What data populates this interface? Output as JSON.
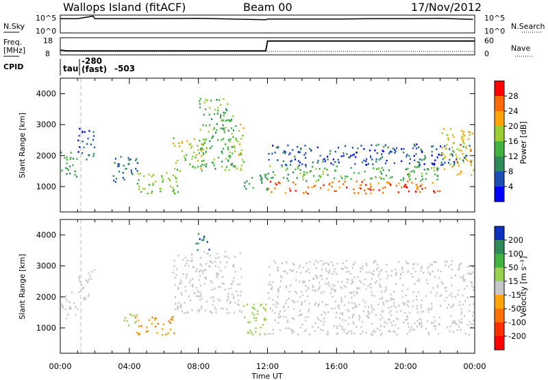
{
  "header": {
    "station": "Wallops Island (fitACF)",
    "beam": "Beam 00",
    "date": "17/Nov/2012"
  },
  "top_panels": {
    "nsky_label": "N.Sky",
    "nsky_ticks": [
      "10^5",
      "10^0"
    ],
    "nsearch_label": "N.Search",
    "nsearch_ticks": [
      "10^5",
      "10^0"
    ],
    "freq_label": "Freq.",
    "freq_unit": "[MHz]",
    "freq_ticks": [
      "18",
      "8"
    ],
    "nave_label": "Nave",
    "nave_ticks": [
      "60",
      "0"
    ],
    "cpid_label": "CPID",
    "cpid_entries": [
      "tau",
      "-280",
      "(fast)",
      "-503"
    ]
  },
  "axes": {
    "xlabel": "Time UT",
    "ylabel": "Slant Range [km]",
    "x_ticks": [
      "00:00",
      "04:00",
      "08:00",
      "12:00",
      "16:00",
      "20:00",
      "00:00"
    ],
    "y_ticks": [
      "1000",
      "2000",
      "3000",
      "4000"
    ]
  },
  "colorbars": {
    "power": {
      "label": "Power [dB]",
      "ticks": [
        "4",
        "8",
        "12",
        "16",
        "20",
        "24",
        "28"
      ],
      "colors": [
        "#0000ff",
        "#1e4fb4",
        "#2e8b57",
        "#41b241",
        "#9acd32",
        "#ffa500",
        "#ff6a00",
        "#ff0000"
      ]
    },
    "velocity": {
      "label": "Velocity [m s⁻¹]",
      "ticks": [
        "200",
        "100",
        "50",
        "15",
        "-15",
        "-50",
        "-100",
        "-200"
      ],
      "colors": [
        "#1030c0",
        "#2e8b57",
        "#41b241",
        "#9ad050",
        "#c8c8c8",
        "#ffa500",
        "#ff7000",
        "#ff3000",
        "#ff0000"
      ]
    }
  },
  "chart_data": [
    {
      "type": "line",
      "title": "N.Sky",
      "x": [
        0,
        1,
        1.9,
        2,
        4,
        8,
        11.9,
        12,
        14,
        16,
        18,
        20,
        22,
        23.9
      ],
      "y_log10": [
        4.1,
        4.1,
        4.9,
        4.1,
        4.1,
        4.2,
        3.8,
        4.0,
        4.0,
        4.0,
        4.1,
        4.1,
        4.2,
        3.9
      ]
    },
    {
      "type": "line",
      "title": "Freq. [MHz]",
      "x": [
        0,
        0.4,
        11.9,
        12,
        24
      ],
      "y": [
        10.5,
        10,
        10,
        16,
        16
      ]
    },
    {
      "type": "heatmap",
      "title": "Power [dB]",
      "xlim": [
        0,
        24
      ],
      "ylim": [
        180,
        4500
      ],
      "ylabel": "Slant Range [km]",
      "xlabel": "Time UT",
      "bands": [
        {
          "t0": 0.0,
          "t1": 1.0,
          "r0": 1300,
          "r1": 2200,
          "p": 12
        },
        {
          "t0": 1.0,
          "t1": 2.0,
          "r0": 1900,
          "r1": 2900,
          "p": 6
        },
        {
          "t0": 3.0,
          "t1": 4.5,
          "r0": 1100,
          "r1": 2000,
          "p": 8
        },
        {
          "t0": 4.2,
          "t1": 6.8,
          "r0": 800,
          "r1": 1500,
          "p": 16
        },
        {
          "t0": 6.5,
          "t1": 8.5,
          "r0": 1500,
          "r1": 2600,
          "p": 18
        },
        {
          "t0": 8.0,
          "t1": 10.0,
          "r0": 1600,
          "r1": 3900,
          "p": 14
        },
        {
          "t0": 9.5,
          "t1": 10.6,
          "r0": 1500,
          "r1": 3100,
          "p": 18
        },
        {
          "t0": 10.6,
          "t1": 12.0,
          "r0": 900,
          "r1": 1500,
          "p": 12
        },
        {
          "t0": 12.0,
          "t1": 22.0,
          "r0": 800,
          "r1": 1200,
          "p": 26
        },
        {
          "t0": 12.0,
          "t1": 22.0,
          "r0": 1200,
          "r1": 1700,
          "p": 14
        },
        {
          "t0": 12.0,
          "t1": 23.8,
          "r0": 1700,
          "r1": 2400,
          "p": 6
        },
        {
          "t0": 22.0,
          "t1": 23.9,
          "r0": 1400,
          "r1": 2900,
          "p": 20
        }
      ]
    },
    {
      "type": "heatmap",
      "title": "Velocity [m s⁻¹]",
      "xlim": [
        0,
        24
      ],
      "ylim": [
        180,
        4500
      ],
      "ylabel": "Slant Range [km]",
      "xlabel": "Time UT",
      "bands": [
        {
          "t0": 0.0,
          "t1": 1.0,
          "r0": 1300,
          "r1": 2200,
          "v": 0
        },
        {
          "t0": 1.0,
          "t1": 2.0,
          "r0": 1900,
          "r1": 2900,
          "v": 0
        },
        {
          "t0": 3.5,
          "t1": 4.5,
          "r0": 1100,
          "r1": 1500,
          "v": 30
        },
        {
          "t0": 4.3,
          "t1": 6.6,
          "r0": 800,
          "r1": 1400,
          "v": -50
        },
        {
          "t0": 6.5,
          "t1": 10.5,
          "r0": 1500,
          "r1": 3500,
          "v": 0
        },
        {
          "t0": 7.8,
          "t1": 8.6,
          "r0": 3500,
          "r1": 4100,
          "v": 200
        },
        {
          "t0": 10.5,
          "t1": 12.0,
          "r0": 800,
          "r1": 1800,
          "v": 30
        },
        {
          "t0": 12.0,
          "t1": 23.9,
          "r0": 800,
          "r1": 2400,
          "v": 0
        },
        {
          "t0": 12.0,
          "t1": 23.9,
          "r0": 2400,
          "r1": 3200,
          "v": 0
        }
      ]
    }
  ]
}
